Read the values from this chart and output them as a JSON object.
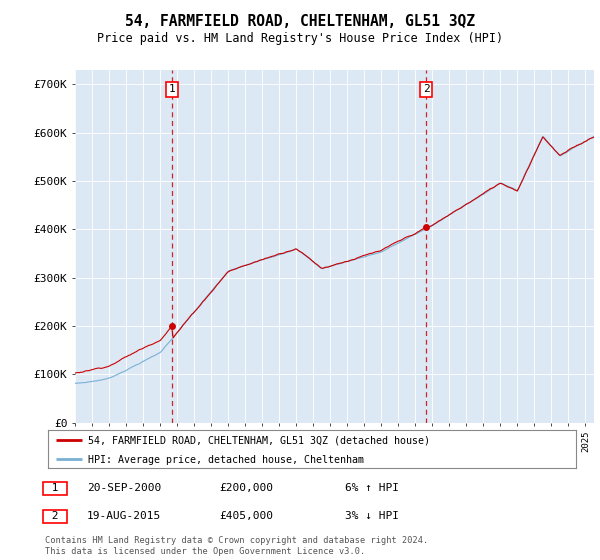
{
  "title": "54, FARMFIELD ROAD, CHELTENHAM, GL51 3QZ",
  "subtitle": "Price paid vs. HM Land Registry's House Price Index (HPI)",
  "ylabel_ticks": [
    "£0",
    "£100K",
    "£200K",
    "£300K",
    "£400K",
    "£500K",
    "£600K",
    "£700K"
  ],
  "ytick_vals": [
    0,
    100000,
    200000,
    300000,
    400000,
    500000,
    600000,
    700000
  ],
  "ylim": [
    0,
    730000
  ],
  "xlim_start": 1995,
  "xlim_end": 2025.5,
  "bg_color": "#dce9f5",
  "red_color": "#cc0000",
  "blue_color": "#7ab0d4",
  "transaction1_t": 2000.72,
  "transaction1_p": 200000,
  "transaction2_t": 2015.63,
  "transaction2_p": 405000,
  "legend_line1": "54, FARMFIELD ROAD, CHELTENHAM, GL51 3QZ (detached house)",
  "legend_line2": "HPI: Average price, detached house, Cheltenham",
  "note1_date": "20-SEP-2000",
  "note1_price": "£200,000",
  "note1_hpi": "6% ↑ HPI",
  "note2_date": "19-AUG-2015",
  "note2_price": "£405,000",
  "note2_hpi": "3% ↓ HPI",
  "footer": "Contains HM Land Registry data © Crown copyright and database right 2024.\nThis data is licensed under the Open Government Licence v3.0."
}
